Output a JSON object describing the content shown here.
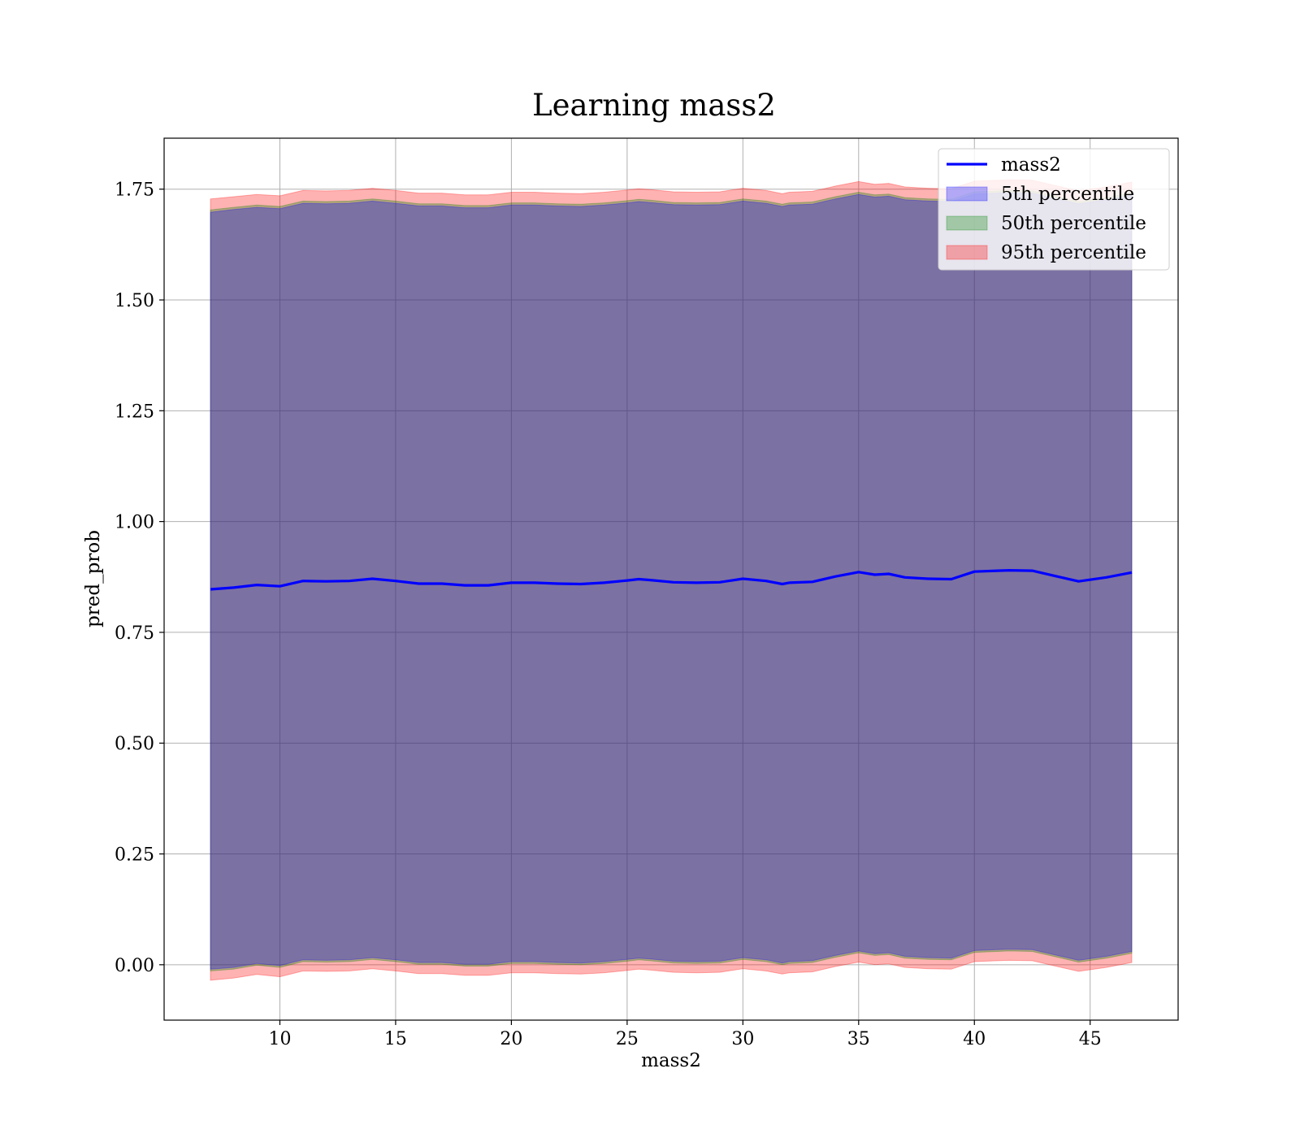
{
  "chart_data": {
    "type": "line",
    "title": "Learning mass2",
    "xlabel": "mass2",
    "ylabel": "pred_prob",
    "xlim": [
      5.0,
      48.8
    ],
    "ylim": [
      -0.125,
      1.865
    ],
    "xticks": [
      10,
      15,
      20,
      25,
      30,
      35,
      40,
      45
    ],
    "yticks": [
      0.0,
      0.25,
      0.5,
      0.75,
      1.0,
      1.25,
      1.5,
      1.75
    ],
    "ytick_labels": [
      "0.00",
      "0.25",
      "0.50",
      "0.75",
      "1.00",
      "1.25",
      "1.50",
      "1.75"
    ],
    "grid": true,
    "legend_position": "top-right",
    "colors": {
      "line": "#0000ff",
      "band_5": "#0000ff",
      "band_50": "#008000",
      "band_95": "#ff0000"
    },
    "x": [
      7.0,
      8.0,
      9.0,
      10.0,
      11.0,
      12.0,
      13.0,
      14.0,
      15.0,
      16.0,
      17.0,
      18.0,
      19.0,
      20.0,
      21.0,
      22.0,
      23.0,
      24.0,
      25.0,
      25.5,
      26.0,
      27.0,
      28.0,
      29.0,
      30.0,
      31.0,
      31.7,
      32.0,
      33.0,
      34.0,
      35.0,
      35.7,
      36.3,
      37.0,
      38.0,
      39.0,
      40.0,
      41.0,
      41.5,
      42.5,
      43.5,
      44.5,
      45.7,
      46.8
    ],
    "series": [
      {
        "name": "mass2",
        "kind": "line",
        "values": [
          0.847,
          0.851,
          0.857,
          0.854,
          0.866,
          0.865,
          0.866,
          0.871,
          0.866,
          0.86,
          0.86,
          0.856,
          0.856,
          0.862,
          0.862,
          0.86,
          0.859,
          0.862,
          0.867,
          0.87,
          0.868,
          0.863,
          0.862,
          0.863,
          0.871,
          0.866,
          0.859,
          0.862,
          0.864,
          0.876,
          0.886,
          0.88,
          0.882,
          0.874,
          0.871,
          0.87,
          0.887,
          0.889,
          0.89,
          0.889,
          0.877,
          0.865,
          0.874,
          0.885
        ]
      },
      {
        "name": "5th percentile",
        "kind": "band",
        "lower": [
          -0.01,
          -0.006,
          0.003,
          -0.002,
          0.011,
          0.01,
          0.011,
          0.016,
          0.011,
          0.005,
          0.005,
          0.001,
          0.001,
          0.007,
          0.007,
          0.005,
          0.004,
          0.007,
          0.012,
          0.015,
          0.013,
          0.008,
          0.007,
          0.008,
          0.016,
          0.011,
          0.004,
          0.007,
          0.009,
          0.021,
          0.031,
          0.025,
          0.027,
          0.019,
          0.016,
          0.015,
          0.032,
          0.034,
          0.035,
          0.034,
          0.022,
          0.01,
          0.019,
          0.03
        ],
        "upper": [
          1.698,
          1.704,
          1.709,
          1.706,
          1.718,
          1.717,
          1.718,
          1.723,
          1.718,
          1.712,
          1.712,
          1.708,
          1.708,
          1.714,
          1.714,
          1.712,
          1.711,
          1.714,
          1.719,
          1.722,
          1.72,
          1.715,
          1.714,
          1.715,
          1.723,
          1.718,
          1.711,
          1.714,
          1.716,
          1.728,
          1.738,
          1.732,
          1.734,
          1.726,
          1.723,
          1.722,
          1.739,
          1.741,
          1.742,
          1.741,
          1.729,
          1.717,
          1.726,
          1.737
        ]
      },
      {
        "name": "50th percentile",
        "kind": "band",
        "lower": [
          -0.014,
          -0.01,
          -0.001,
          -0.006,
          0.007,
          0.006,
          0.007,
          0.012,
          0.007,
          0.001,
          0.001,
          -0.003,
          -0.003,
          0.003,
          0.003,
          0.001,
          0.0,
          0.003,
          0.008,
          0.011,
          0.009,
          0.004,
          0.003,
          0.004,
          0.012,
          0.007,
          0.0,
          0.003,
          0.005,
          0.017,
          0.027,
          0.021,
          0.023,
          0.015,
          0.012,
          0.011,
          0.028,
          0.03,
          0.031,
          0.03,
          0.018,
          0.006,
          0.015,
          0.026
        ],
        "upper": [
          1.703,
          1.709,
          1.714,
          1.711,
          1.723,
          1.722,
          1.723,
          1.728,
          1.723,
          1.717,
          1.717,
          1.713,
          1.713,
          1.719,
          1.719,
          1.717,
          1.716,
          1.719,
          1.724,
          1.727,
          1.725,
          1.72,
          1.719,
          1.72,
          1.728,
          1.723,
          1.716,
          1.719,
          1.721,
          1.733,
          1.743,
          1.737,
          1.739,
          1.731,
          1.728,
          1.727,
          1.744,
          1.746,
          1.747,
          1.746,
          1.734,
          1.722,
          1.731,
          1.742
        ]
      },
      {
        "name": "95th percentile",
        "kind": "band",
        "lower": [
          -0.035,
          -0.03,
          -0.022,
          -0.027,
          -0.014,
          -0.015,
          -0.014,
          -0.009,
          -0.014,
          -0.02,
          -0.02,
          -0.024,
          -0.024,
          -0.018,
          -0.018,
          -0.02,
          -0.021,
          -0.018,
          -0.013,
          -0.01,
          -0.012,
          -0.017,
          -0.018,
          -0.017,
          -0.009,
          -0.014,
          -0.021,
          -0.018,
          -0.016,
          -0.004,
          0.006,
          0.0,
          0.002,
          -0.006,
          -0.009,
          -0.01,
          0.007,
          0.009,
          0.01,
          0.009,
          -0.003,
          -0.015,
          -0.006,
          0.005
        ],
        "upper": [
          1.728,
          1.733,
          1.738,
          1.735,
          1.747,
          1.746,
          1.747,
          1.752,
          1.747,
          1.741,
          1.741,
          1.737,
          1.737,
          1.743,
          1.743,
          1.741,
          1.74,
          1.743,
          1.748,
          1.751,
          1.749,
          1.744,
          1.743,
          1.744,
          1.752,
          1.747,
          1.74,
          1.743,
          1.745,
          1.757,
          1.767,
          1.761,
          1.763,
          1.755,
          1.752,
          1.751,
          1.768,
          1.77,
          1.771,
          1.77,
          1.758,
          1.746,
          1.755,
          1.766
        ]
      }
    ]
  }
}
